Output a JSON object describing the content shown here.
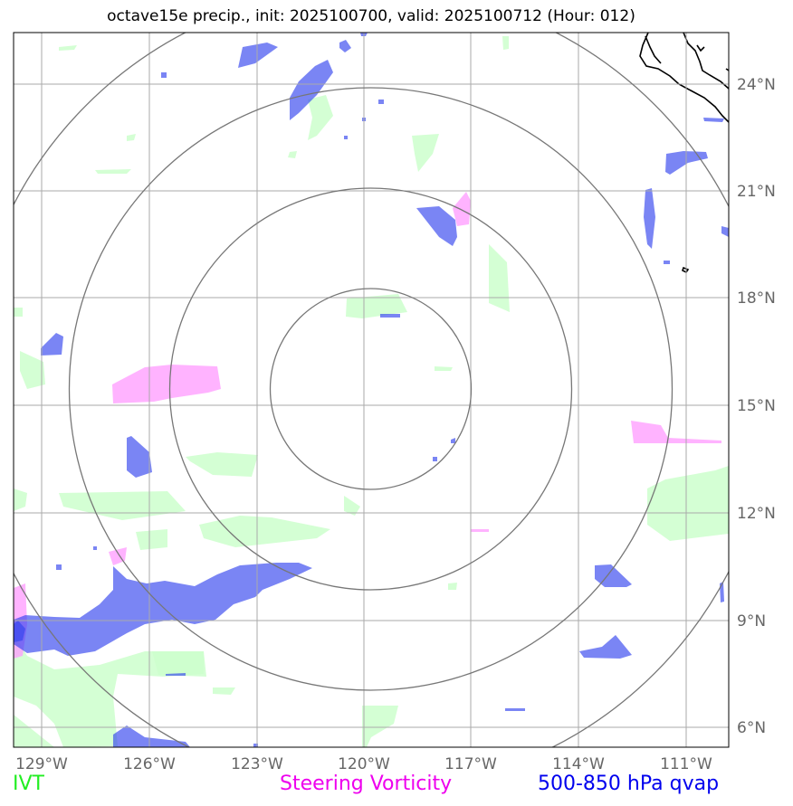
{
  "title": "octave15e precip., init: 2025100700, valid: 2025100712 (Hour: 012)",
  "longitude_ticks": [
    "129°W",
    "126°W",
    "123°W",
    "120°W",
    "117°W",
    "114°W",
    "111°W"
  ],
  "latitude_ticks": [
    "24°N",
    "21°N",
    "18°N",
    "15°N",
    "12°N",
    "9°N",
    "6°N"
  ],
  "legend": {
    "ivt": "IVT",
    "steering_vorticity": "Steering Vorticity",
    "qvap": "500-850 hPa qvap"
  },
  "colors": {
    "ivt": "#22ee22",
    "steering_vorticity": "#ee00ee",
    "qvap": "#0000ee",
    "ivt_fill": "#ccffcc",
    "vort_fill": "#ff99ff",
    "qvap_fill": "#0000ee",
    "grid": "#aaaaaa",
    "range_rings": "#777777"
  },
  "chart_data": {
    "type": "map",
    "title": "octave15e precip., init: 2025100700, valid: 2025100712 (Hour: 012)",
    "lon_range": [
      -129.8,
      -110.0
    ],
    "lat_range": [
      5.4,
      25.5
    ],
    "center": {
      "lon": -120.0,
      "lat": 15.5
    },
    "range_ring_count": 4,
    "layers": [
      "IVT",
      "Steering Vorticity",
      "500-850 hPa qvap"
    ]
  }
}
